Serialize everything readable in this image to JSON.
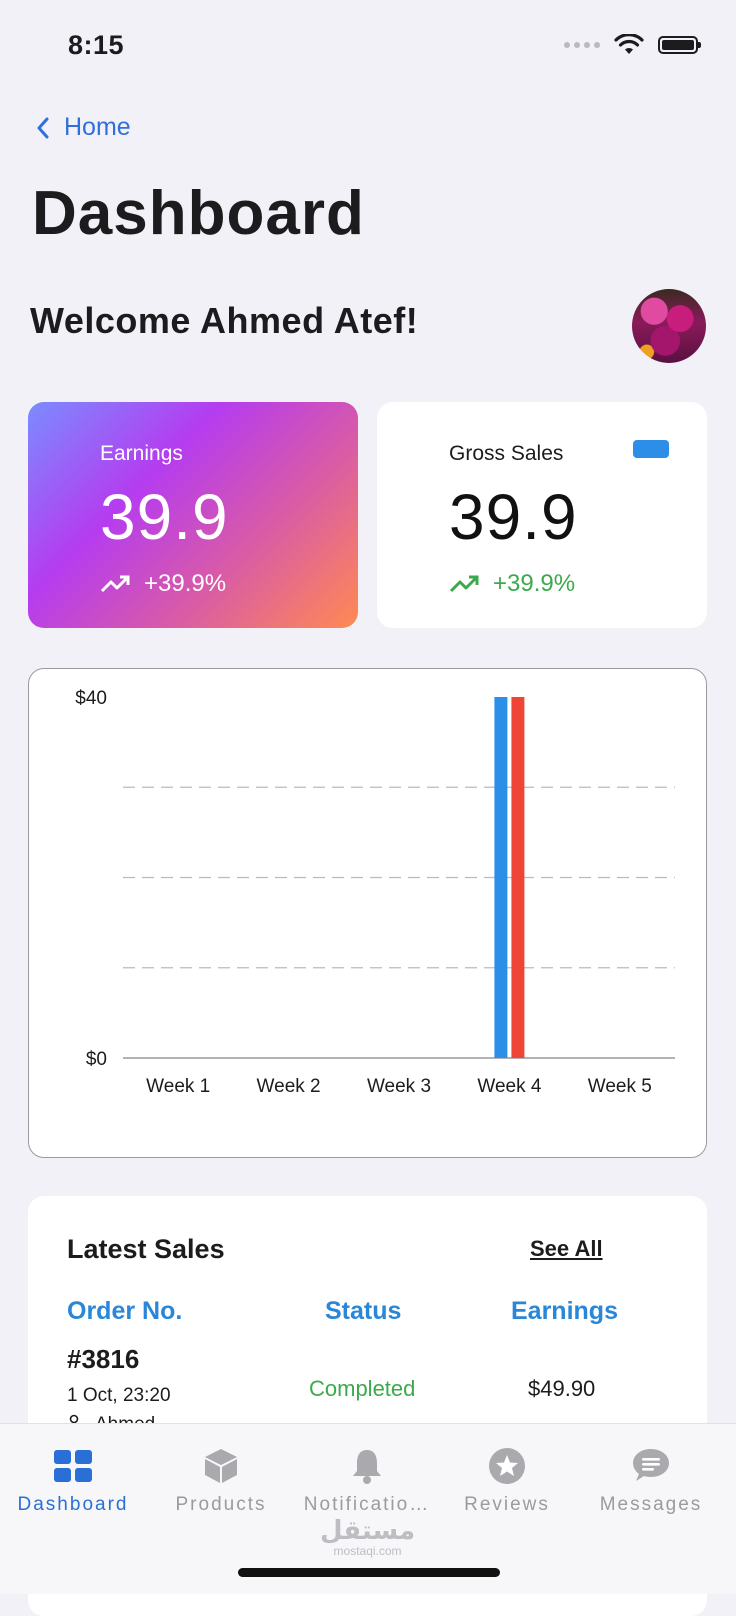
{
  "status_bar": {
    "time": "8:15"
  },
  "nav": {
    "back_label": "Home",
    "title": "Dashboard"
  },
  "welcome": {
    "text": "Welcome Ahmed Atef!"
  },
  "cards": {
    "earnings": {
      "label": "Earnings",
      "value": "39.9",
      "change": "+39.9%"
    },
    "gross_sales": {
      "label": "Gross Sales",
      "value": "39.9",
      "change": "+39.9%"
    }
  },
  "colors": {
    "blue": "#2d8ee8",
    "red": "#ee4536",
    "green": "#3caa4c",
    "link": "#2f6fde"
  },
  "chart_data": {
    "type": "bar",
    "categories": [
      "Week 1",
      "Week 2",
      "Week 3",
      "Week 4",
      "Week 5"
    ],
    "series": [
      {
        "color": "#2d8ee8",
        "values": [
          0,
          0,
          0,
          40,
          0
        ]
      },
      {
        "color": "#ee4536",
        "values": [
          0,
          0,
          0,
          40,
          0
        ]
      }
    ],
    "ylim": [
      0,
      40
    ],
    "yticks": [
      "$0",
      "$40"
    ],
    "grid": "dashed horizontal"
  },
  "latest_sales": {
    "title": "Latest Sales",
    "see_all": "See All",
    "columns": [
      "Order No.",
      "Status",
      "Earnings"
    ],
    "rows": [
      {
        "order": "#3816",
        "date": "1 Oct, 23:20",
        "customer": "Ahmed",
        "status": "Completed",
        "earnings": "$49.90"
      }
    ]
  },
  "tab_bar": {
    "items": [
      {
        "label": "Dashboard",
        "icon": "grid-icon"
      },
      {
        "label": "Products",
        "icon": "box-icon"
      },
      {
        "label": "Notificatio…",
        "icon": "bell-icon"
      },
      {
        "label": "Reviews",
        "icon": "star-icon"
      },
      {
        "label": "Messages",
        "icon": "chat-icon"
      }
    ]
  },
  "watermark": {
    "arabic": "مستقل",
    "latin": "mostaqi.com"
  }
}
